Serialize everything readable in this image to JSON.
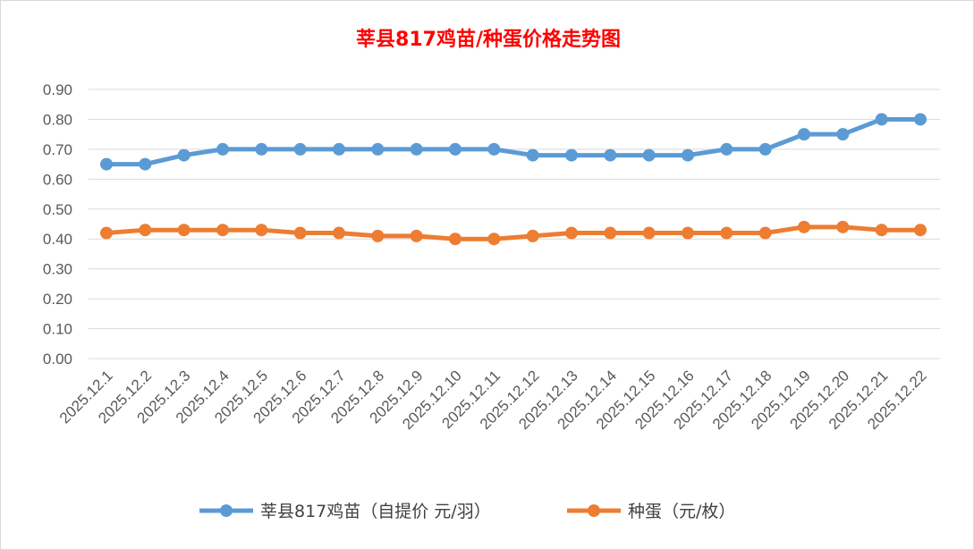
{
  "chart_data": {
    "type": "line",
    "title": "莘县817鸡苗/种蛋价格走势图",
    "categories": [
      "2025.12.1",
      "2025.12.2",
      "2025.12.3",
      "2025.12.4",
      "2025.12.5",
      "2025.12.6",
      "2025.12.7",
      "2025.12.8",
      "2025.12.9",
      "2025.12.10",
      "2025.12.11",
      "2025.12.12",
      "2025.12.13",
      "2025.12.14",
      "2025.12.15",
      "2025.12.16",
      "2025.12.17",
      "2025.12.18",
      "2025.12.19",
      "2025.12.20",
      "2025.12.21",
      "2025.12.22"
    ],
    "series": [
      {
        "name": "莘县817鸡苗（自提价 元/羽）",
        "color": "#5b9bd5",
        "values": [
          0.65,
          0.65,
          0.68,
          0.7,
          0.7,
          0.7,
          0.7,
          0.7,
          0.7,
          0.7,
          0.7,
          0.68,
          0.68,
          0.68,
          0.68,
          0.68,
          0.7,
          0.7,
          0.75,
          0.75,
          0.8,
          0.8
        ]
      },
      {
        "name": "种蛋（元/枚）",
        "color": "#ed7d31",
        "values": [
          0.42,
          0.43,
          0.43,
          0.43,
          0.43,
          0.42,
          0.42,
          0.41,
          0.41,
          0.4,
          0.4,
          0.41,
          0.42,
          0.42,
          0.42,
          0.42,
          0.42,
          0.42,
          0.44,
          0.44,
          0.43,
          0.43
        ]
      }
    ],
    "yticks": [
      "0.00",
      "0.10",
      "0.20",
      "0.30",
      "0.40",
      "0.50",
      "0.60",
      "0.70",
      "0.80",
      "0.90"
    ],
    "ylim": [
      0,
      0.9
    ],
    "xlabel": "",
    "ylabel": "",
    "grid": true,
    "legend": "bottom"
  }
}
